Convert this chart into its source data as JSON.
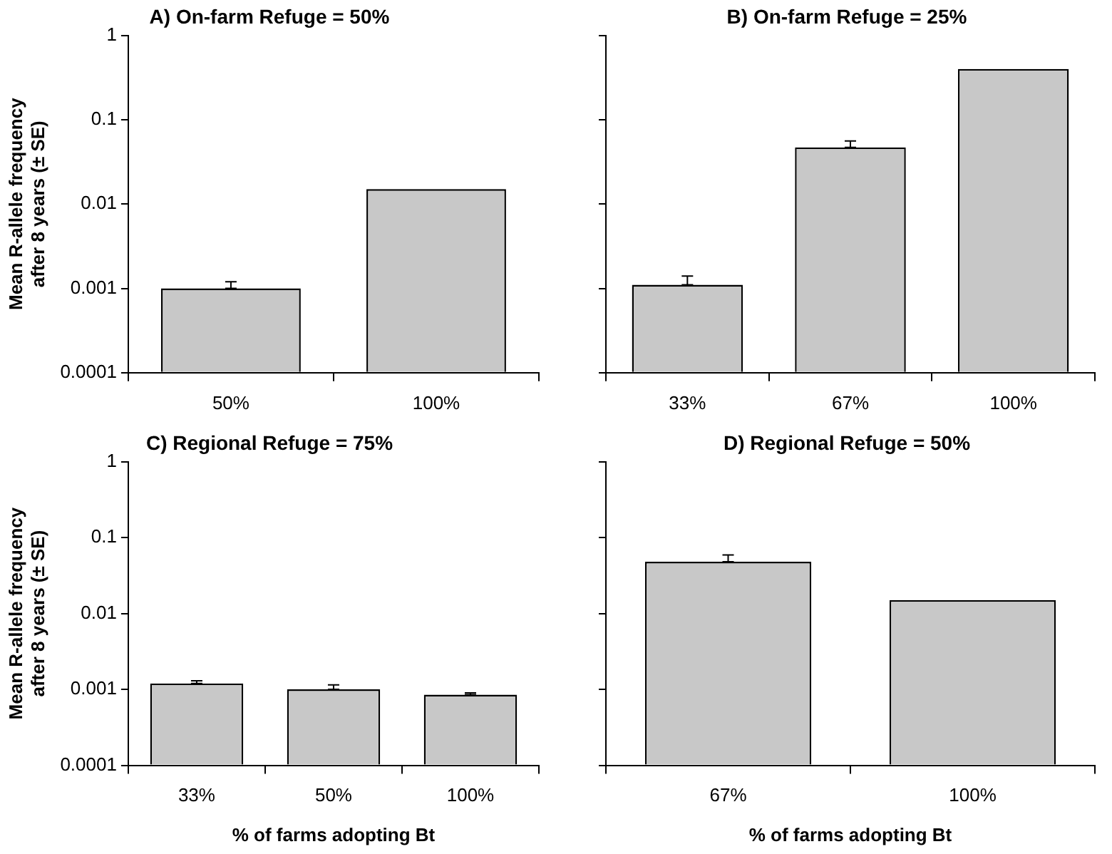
{
  "chart_data": [
    {
      "type": "bar",
      "title": "A) On-farm Refuge = 50%",
      "ylabel": "Mean R-allele frequency\nafter 8 years (± SE)",
      "categories": [
        "50%",
        "100%"
      ],
      "values": [
        0.001,
        0.015
      ],
      "errors": [
        [
          0.001,
          0.0012
        ],
        null
      ],
      "color": "#c8c8c8",
      "log": "y",
      "ylim": [
        0.0001,
        1
      ],
      "yticks": [
        0.0001,
        0.001,
        0.01,
        0.1,
        1
      ],
      "legend": false
    },
    {
      "type": "bar",
      "title": "B) On-farm Refuge = 25%",
      "categories": [
        "33%",
        "67%",
        "100%"
      ],
      "values": [
        0.0011,
        0.047,
        0.4
      ],
      "errors": [
        [
          0.0011,
          0.0014
        ],
        [
          0.047,
          0.056
        ],
        null
      ],
      "color": "#c8c8c8",
      "log": "y",
      "ylim": [
        0.0001,
        1
      ],
      "yticks": [
        0.0001,
        0.001,
        0.01,
        0.1,
        1
      ],
      "tick_labels": "x",
      "legend": false
    },
    {
      "type": "bar",
      "title": "C) Regional Refuge = 75%",
      "xlabel": "% of farms adopting Bt",
      "ylabel": "Mean R-allele frequency\nafter 8 years (± SE)",
      "categories": [
        "33%",
        "50%",
        "100%"
      ],
      "values": [
        0.0012,
        0.001,
        0.00085
      ],
      "errors": [
        [
          0.0012,
          0.0013
        ],
        [
          0.001,
          0.00115
        ],
        [
          0.00085,
          0.0009
        ]
      ],
      "color": "#c8c8c8",
      "log": "y",
      "ylim": [
        0.0001,
        1
      ],
      "yticks": [
        0.0001,
        0.001,
        0.01,
        0.1,
        1
      ],
      "legend": false
    },
    {
      "type": "bar",
      "title": "D) Regional Refuge = 50%",
      "xlabel": "% of farms adopting Bt",
      "categories": [
        "67%",
        "100%"
      ],
      "values": [
        0.048,
        0.015
      ],
      "errors": [
        [
          0.048,
          0.059
        ],
        null
      ],
      "color": "#c8c8c8",
      "log": "y",
      "ylim": [
        0.0001,
        1
      ],
      "yticks": [
        0.0001,
        0.001,
        0.01,
        0.1,
        1
      ],
      "tick_labels": "x",
      "legend": false
    }
  ]
}
